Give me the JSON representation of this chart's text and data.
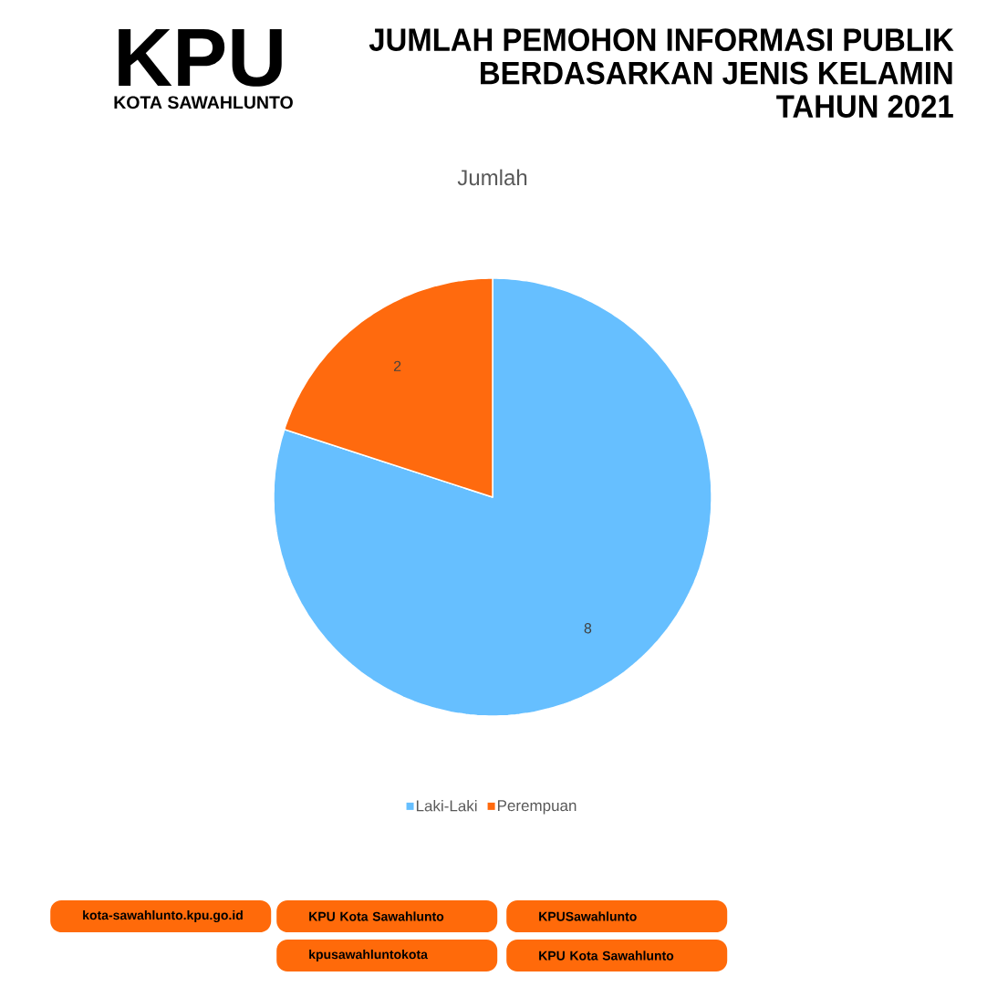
{
  "chart_data": {
    "type": "pie",
    "title": "JUMLAH PEMOHON INFORMASI PUBLIK BERDASARKAN JENIS KELAMIN TAHUN 2021",
    "subtitle": "Jumlah",
    "categories": [
      "Laki-Laki",
      "Perempuan"
    ],
    "values": [
      8,
      2
    ],
    "colors": [
      "#66BFFF",
      "#FF6A0E"
    ],
    "data_labels": true,
    "legend": "bottom",
    "annotations": [
      "KPU",
      "KOTA SAWAHLUNTO",
      "kota-sawahlunto.kpu.go.id",
      "KPU Kota Sawahlunto",
      "KPUSawahlunto",
      "kpusawahluntokota",
      "KPU Kota Sawahlunto"
    ]
  }
}
